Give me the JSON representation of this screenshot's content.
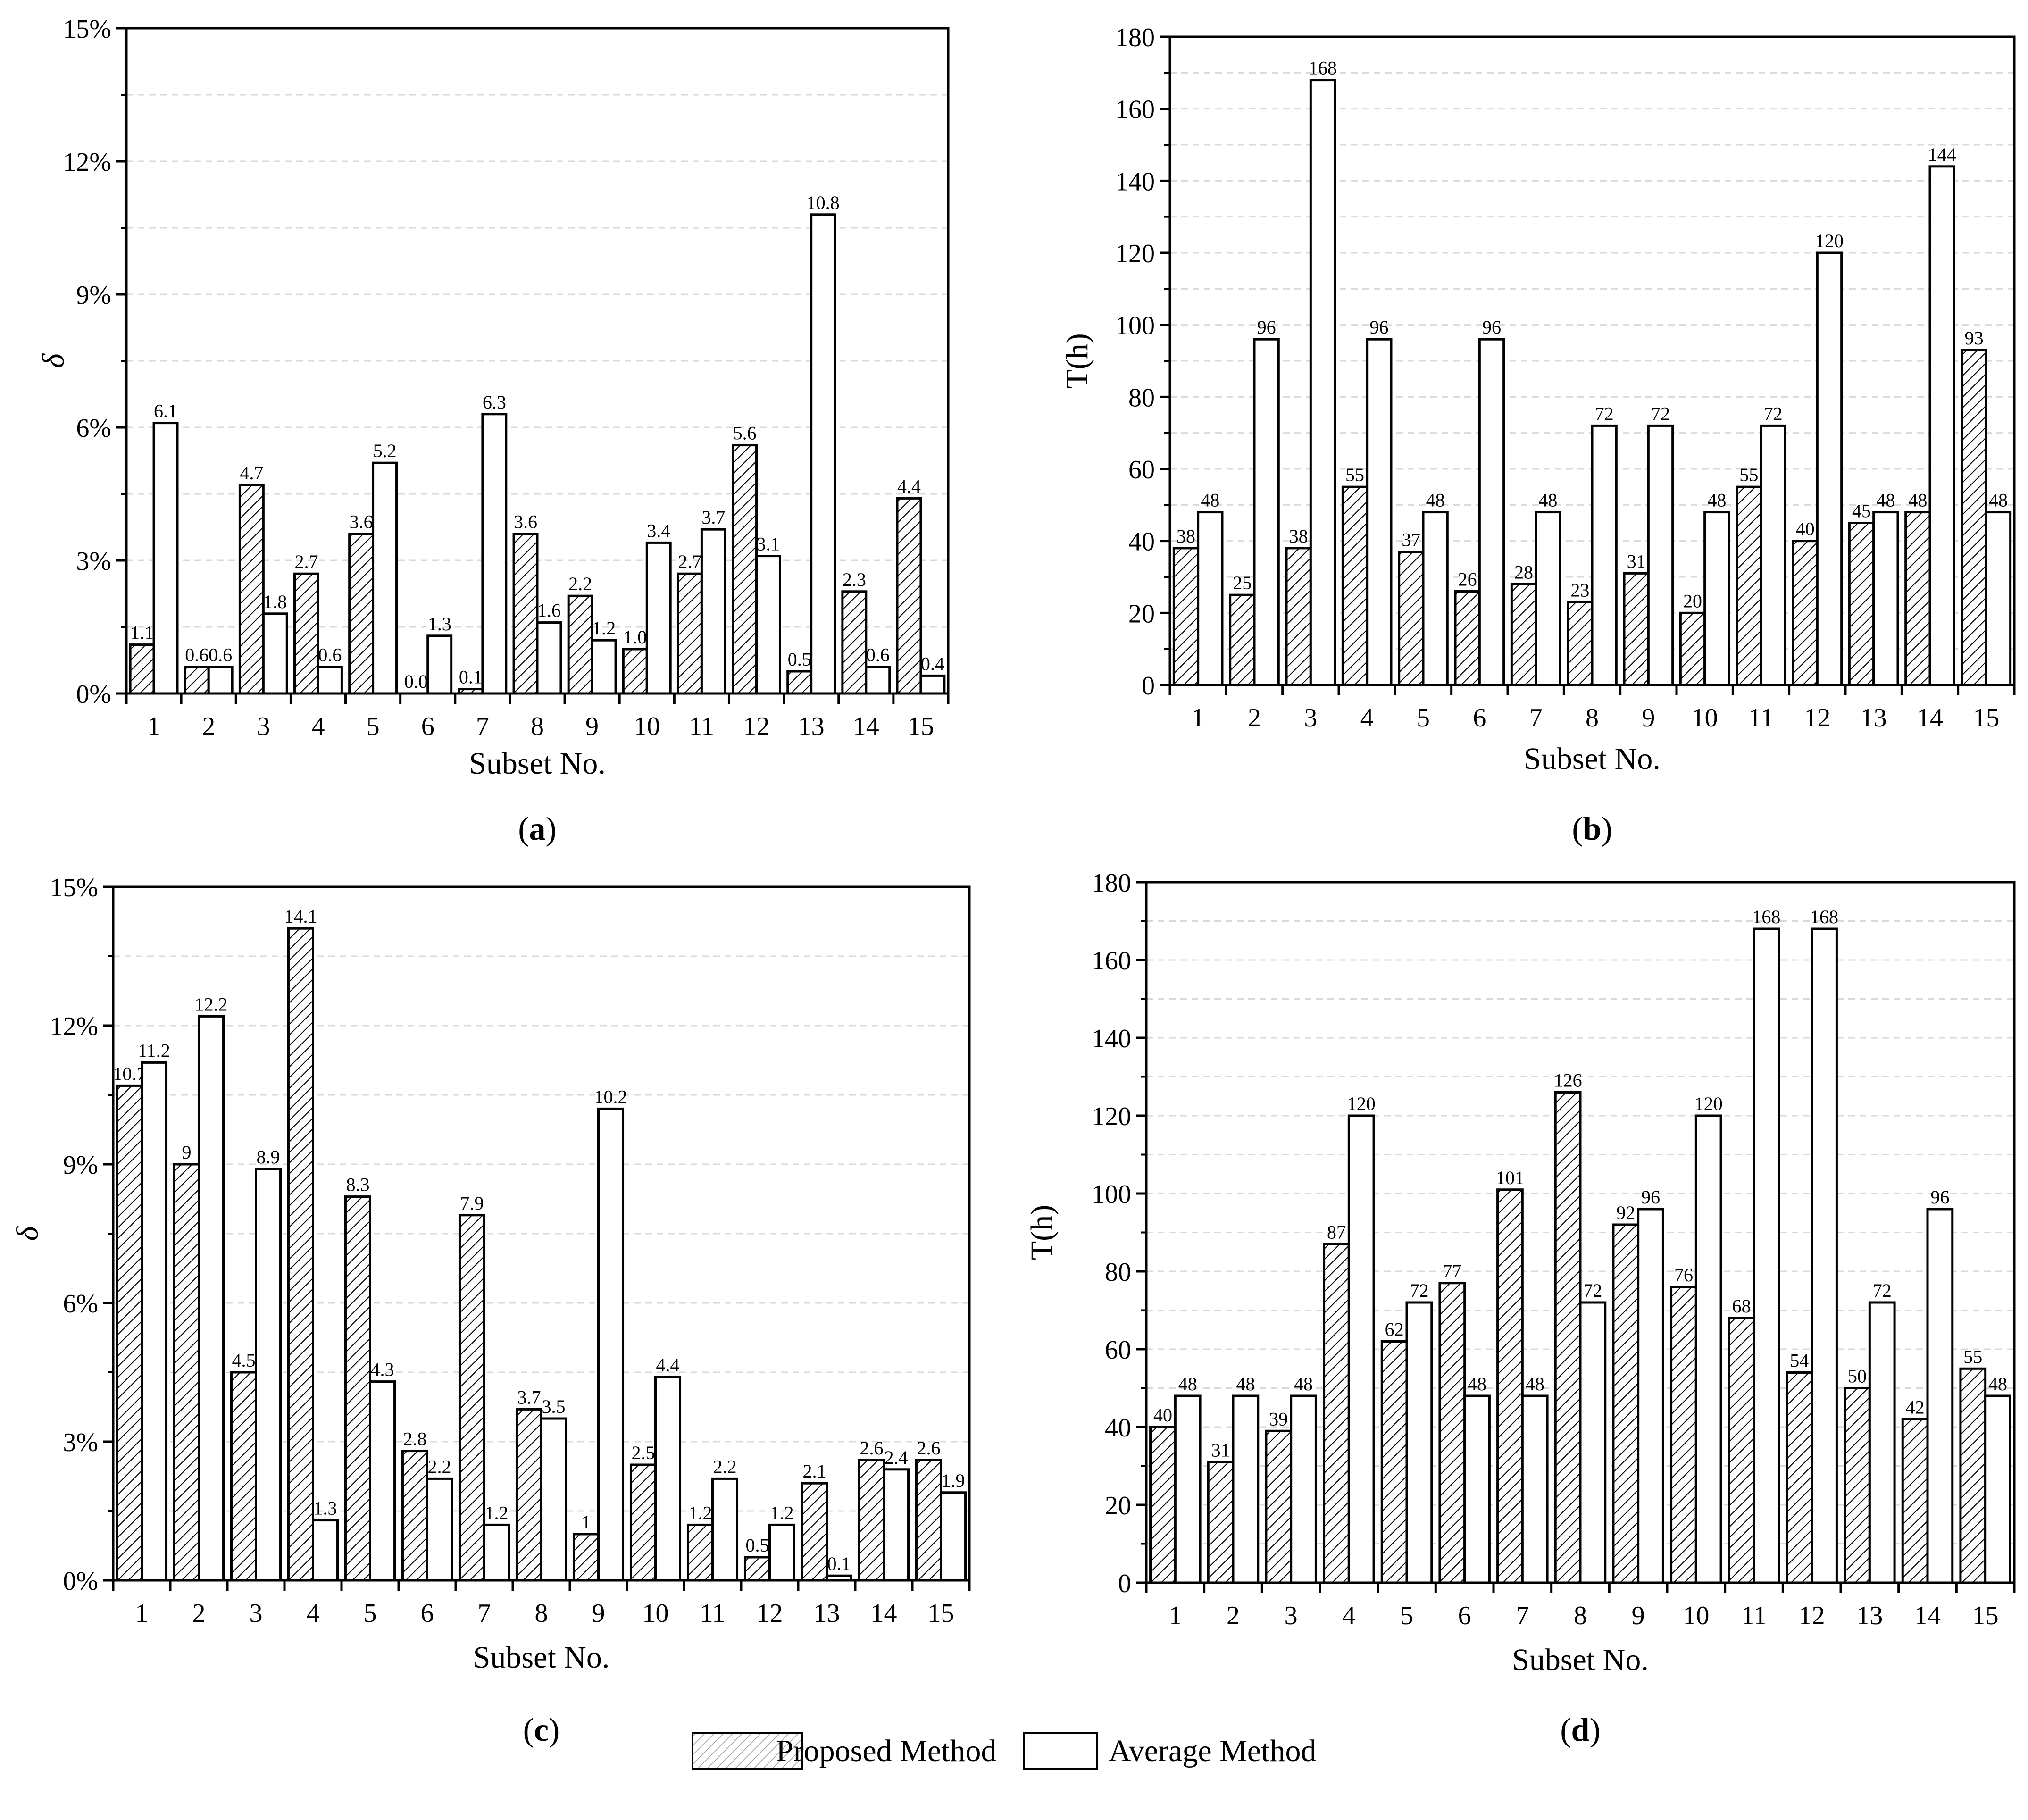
{
  "legend": {
    "proposed_label": "Proposed Method",
    "average_label": "Average Method"
  },
  "colors": {
    "axis": "#000000",
    "grid": "#d9d9d9",
    "bar_fill": "#ffffff",
    "hatch": "#000000"
  },
  "chart_data": [
    {
      "id": "a",
      "panel_label": "(a)",
      "type": "bar",
      "xlabel": "Subset No.",
      "ylabel": "δ",
      "ylim": [
        0,
        15
      ],
      "yticks": [
        0,
        3,
        6,
        9,
        12,
        15
      ],
      "ytick_labels": [
        "0%",
        "3%",
        "6%",
        "9%",
        "12%",
        "15%"
      ],
      "categories": [
        "1",
        "2",
        "3",
        "4",
        "5",
        "6",
        "7",
        "8",
        "9",
        "10",
        "11",
        "12",
        "13",
        "14",
        "15"
      ],
      "series": [
        {
          "name": "Proposed Method",
          "pattern": "hatched",
          "values": [
            1.1,
            0.6,
            4.7,
            2.7,
            3.6,
            0.0,
            0.1,
            3.6,
            2.2,
            1.0,
            2.7,
            5.6,
            0.5,
            2.3,
            4.4
          ],
          "labels": [
            "1.1",
            "0.6",
            "4.7",
            "2.7",
            "3.6",
            "0.0",
            "0.1",
            "3.6",
            "2.2",
            "1.0",
            "2.7",
            "5.6",
            "0.5",
            "2.3",
            "4.4"
          ]
        },
        {
          "name": "Average Method",
          "pattern": "white",
          "values": [
            6.1,
            0.6,
            1.8,
            0.6,
            5.2,
            1.3,
            6.3,
            1.6,
            1.2,
            3.4,
            3.7,
            3.1,
            10.8,
            0.6,
            0.4
          ],
          "labels": [
            "6.1",
            "0.6",
            "1.8",
            "0.6",
            "5.2",
            "1.3",
            "6.3",
            "1.6",
            "1.2",
            "3.4",
            "3.7",
            "3.1",
            "10.8",
            "0.6",
            "0.4"
          ]
        }
      ]
    },
    {
      "id": "b",
      "panel_label": "(b)",
      "type": "bar",
      "xlabel": "Subset No.",
      "ylabel": "T(h)",
      "ylim": [
        0,
        180
      ],
      "yticks": [
        0,
        20,
        40,
        60,
        80,
        100,
        120,
        140,
        160,
        180
      ],
      "ytick_labels": [
        "0",
        "20",
        "40",
        "60",
        "80",
        "100",
        "120",
        "140",
        "160",
        "180"
      ],
      "categories": [
        "1",
        "2",
        "3",
        "4",
        "5",
        "6",
        "7",
        "8",
        "9",
        "10",
        "11",
        "12",
        "13",
        "14",
        "15"
      ],
      "series": [
        {
          "name": "Proposed Method",
          "pattern": "hatched",
          "values": [
            38,
            25,
            38,
            55,
            37,
            26,
            28,
            23,
            31,
            20,
            55,
            40,
            45,
            48,
            93
          ],
          "labels": [
            "38",
            "25",
            "38",
            "55",
            "37",
            "26",
            "28",
            "23",
            "31",
            "20",
            "55",
            "40",
            "45",
            "48",
            "93"
          ]
        },
        {
          "name": "Average Method",
          "pattern": "white",
          "values": [
            48,
            96,
            168,
            96,
            48,
            96,
            48,
            72,
            72,
            48,
            72,
            120,
            48,
            144,
            48
          ],
          "labels": [
            "48",
            "96",
            "168",
            "96",
            "48",
            "96",
            "48",
            "72",
            "72",
            "48",
            "72",
            "120",
            "48",
            "144",
            "48"
          ]
        }
      ]
    },
    {
      "id": "c",
      "panel_label": "(c)",
      "type": "bar",
      "xlabel": "Subset No.",
      "ylabel": "δ",
      "ylim": [
        0,
        15
      ],
      "yticks": [
        0,
        3,
        6,
        9,
        12,
        15
      ],
      "ytick_labels": [
        "0%",
        "3%",
        "6%",
        "9%",
        "12%",
        "15%"
      ],
      "categories": [
        "1",
        "2",
        "3",
        "4",
        "5",
        "6",
        "7",
        "8",
        "9",
        "10",
        "11",
        "12",
        "13",
        "14",
        "15"
      ],
      "series": [
        {
          "name": "Proposed Method",
          "pattern": "hatched",
          "values": [
            10.7,
            9,
            4.5,
            14.1,
            8.3,
            2.8,
            7.9,
            3.7,
            1,
            2.5,
            1.2,
            0.5,
            2.1,
            2.6,
            2.6
          ],
          "labels": [
            "10.7",
            "9",
            "4.5",
            "14.1",
            "8.3",
            "2.8",
            "7.9",
            "3.7",
            "1",
            "2.5",
            "1.2",
            "0.5",
            "2.1",
            "2.6",
            "2.6"
          ]
        },
        {
          "name": "Average Method",
          "pattern": "white",
          "values": [
            11.2,
            12.2,
            8.9,
            1.3,
            4.3,
            2.2,
            1.2,
            3.5,
            10.2,
            4.4,
            2.2,
            1.2,
            0.1,
            2.4,
            1.9
          ],
          "labels": [
            "11.2",
            "12.2",
            "8.9",
            "1.3",
            "4.3",
            "2.2",
            "1.2",
            "3.5",
            "10.2",
            "4.4",
            "2.2",
            "1.2",
            "0.1",
            "2.4",
            "1.9"
          ]
        }
      ]
    },
    {
      "id": "d",
      "panel_label": "(d)",
      "type": "bar",
      "xlabel": "Subset No.",
      "ylabel": "T(h)",
      "ylim": [
        0,
        180
      ],
      "yticks": [
        0,
        20,
        40,
        60,
        80,
        100,
        120,
        140,
        160,
        180
      ],
      "ytick_labels": [
        "0",
        "20",
        "40",
        "60",
        "80",
        "100",
        "120",
        "140",
        "160",
        "180"
      ],
      "categories": [
        "1",
        "2",
        "3",
        "4",
        "5",
        "6",
        "7",
        "8",
        "9",
        "10",
        "11",
        "12",
        "13",
        "14",
        "15"
      ],
      "series": [
        {
          "name": "Proposed Method",
          "pattern": "hatched",
          "values": [
            40,
            31,
            39,
            87,
            62,
            77,
            101,
            126,
            92,
            76,
            68,
            54,
            50,
            42,
            55
          ],
          "labels": [
            "40",
            "31",
            "39",
            "87",
            "62",
            "77",
            "101",
            "126",
            "92",
            "76",
            "68",
            "54",
            "50",
            "42",
            "55"
          ]
        },
        {
          "name": "Average Method",
          "pattern": "white",
          "values": [
            48,
            48,
            48,
            120,
            72,
            48,
            48,
            72,
            96,
            120,
            168,
            168,
            72,
            96,
            48
          ],
          "labels": [
            "48",
            "48",
            "48",
            "120",
            "72",
            "48",
            "48",
            "72",
            "96",
            "120",
            "168",
            "168",
            "72",
            "96",
            "48"
          ]
        }
      ]
    }
  ]
}
